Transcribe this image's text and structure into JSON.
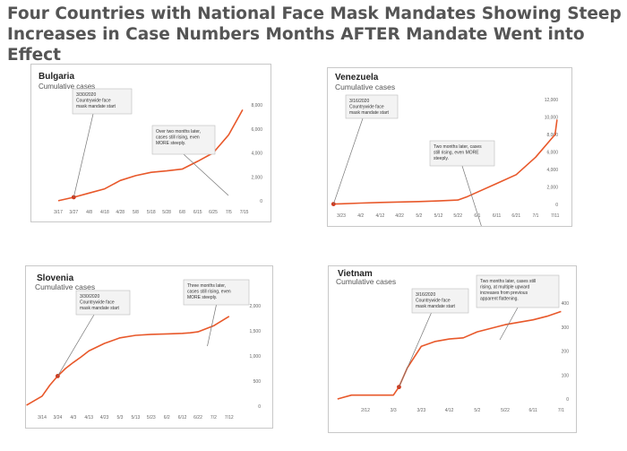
{
  "headline": {
    "line1": "Four Countries with National Face Mask Mandates Showing Steep",
    "line2": "Increases in Case Numbers Months AFTER Mandate Went into Effect"
  },
  "colors": {
    "line": "#e8582a",
    "marker": "#d03a1e",
    "title": "#555555",
    "frame": "#c8c8c8"
  },
  "chart_data": [
    {
      "type": "line",
      "title": "Bulgaria",
      "subtitle": "Cumulative cases",
      "xlabels": [
        "3/17",
        "3/27",
        "4/8",
        "4/18",
        "4/28",
        "5/8",
        "5/18",
        "5/28",
        "6/8",
        "6/15",
        "6/25",
        "7/5",
        "7/15"
      ],
      "ylim": [
        0,
        8000
      ],
      "yticks": [
        "0",
        "2,000",
        "4,000",
        "6,000",
        "8,000"
      ],
      "series": [
        {
          "name": "Cumulative cases",
          "x": [
            0,
            1,
            2,
            3,
            4,
            5,
            6,
            7,
            8,
            9,
            10,
            11,
            11.9
          ],
          "y": [
            10,
            300,
            650,
            1000,
            1700,
            2100,
            2380,
            2500,
            2650,
            3300,
            4000,
            5500,
            7600
          ]
        }
      ],
      "marker": {
        "x": 1,
        "y": 300
      },
      "callouts": [
        {
          "lines": [
            "3/30/2020",
            "Countrywide face",
            "mask mandate start"
          ]
        },
        {
          "lines": [
            "Over two months later,",
            "cases still rising, even",
            "MORE steeply."
          ]
        }
      ]
    },
    {
      "type": "line",
      "title": "Venezuela",
      "subtitle": "Cumulative cases",
      "xlabels": [
        "3/23",
        "4/2",
        "4/12",
        "4/22",
        "5/2",
        "5/12",
        "5/22",
        "6/1",
        "6/11",
        "6/21",
        "7/1",
        "7/11"
      ],
      "ylim": [
        0,
        12000
      ],
      "yticks": [
        "0",
        "2,000",
        "4,000",
        "6,000",
        "8,000",
        "10,000",
        "12,000"
      ],
      "series": [
        {
          "name": "Cumulative cases",
          "x": [
            -0.4,
            0,
            1,
            2,
            3,
            4,
            5,
            6,
            6.5,
            7,
            8,
            9,
            10,
            11,
            11.1
          ],
          "y": [
            40,
            70,
            150,
            230,
            280,
            330,
            400,
            500,
            900,
            1400,
            2400,
            3400,
            5400,
            8000,
            9700
          ]
        }
      ],
      "marker": {
        "x": -0.4,
        "y": 40
      },
      "callouts": [
        {
          "lines": [
            "3/16/2020",
            "Countrywide face",
            "mask mandate start"
          ]
        },
        {
          "lines": [
            "Two months later, cases",
            "still rising, even MORE",
            "steeply."
          ]
        }
      ]
    },
    {
      "type": "line",
      "title": "Slovenia",
      "subtitle": "Cumulative cases",
      "xlabels": [
        "3/14",
        "3/24",
        "4/3",
        "4/13",
        "4/23",
        "5/3",
        "5/13",
        "5/23",
        "6/2",
        "6/12",
        "6/22",
        "7/2",
        "7/12"
      ],
      "ylim": [
        0,
        2000
      ],
      "yticks": [
        "0",
        "500",
        "1,000",
        "1,500",
        "2,000"
      ],
      "series": [
        {
          "name": "Cumulative cases",
          "x": [
            -1,
            0,
            0.5,
            1,
            1.5,
            2,
            2.5,
            3,
            4,
            5,
            6,
            7,
            8,
            9,
            9.5,
            10,
            11,
            12
          ],
          "y": [
            20,
            200,
            420,
            600,
            750,
            870,
            980,
            1100,
            1250,
            1360,
            1410,
            1430,
            1440,
            1450,
            1460,
            1480,
            1600,
            1790
          ]
        }
      ],
      "marker": {
        "x": 1,
        "y": 600
      },
      "callouts": [
        {
          "lines": [
            "3/30/2020",
            "Countrywide face",
            "mask mandate start"
          ]
        },
        {
          "lines": [
            "Three months later,",
            "cases still rising, even",
            "MORE steeply."
          ]
        }
      ]
    },
    {
      "type": "line",
      "title": "Vietnam",
      "subtitle": "Cumulative cases",
      "xlabels": [
        "2/12",
        "3/3",
        "3/23",
        "4/12",
        "5/2",
        "5/22",
        "6/11",
        "7/1"
      ],
      "ylim": [
        0,
        400
      ],
      "yticks": [
        "0",
        "100",
        "200",
        "300",
        "400"
      ],
      "series": [
        {
          "name": "Cumulative cases",
          "x": [
            -1,
            -0.5,
            0,
            0.5,
            1,
            1.2,
            1.5,
            2,
            2.5,
            3,
            3.5,
            4,
            5,
            6,
            6.5,
            7
          ],
          "y": [
            0,
            16,
            16,
            16,
            16,
            50,
            130,
            220,
            240,
            250,
            255,
            280,
            310,
            330,
            345,
            365
          ]
        }
      ],
      "marker": {
        "x": 1.2,
        "y": 50
      },
      "callouts": [
        {
          "lines": [
            "3/16/2020",
            "Countrywide face",
            "mask mandate start"
          ]
        },
        {
          "lines": [
            "Two months later, cases still",
            "rising, at multiple upward",
            "increases from previous",
            "apparent flattening."
          ]
        }
      ]
    }
  ]
}
